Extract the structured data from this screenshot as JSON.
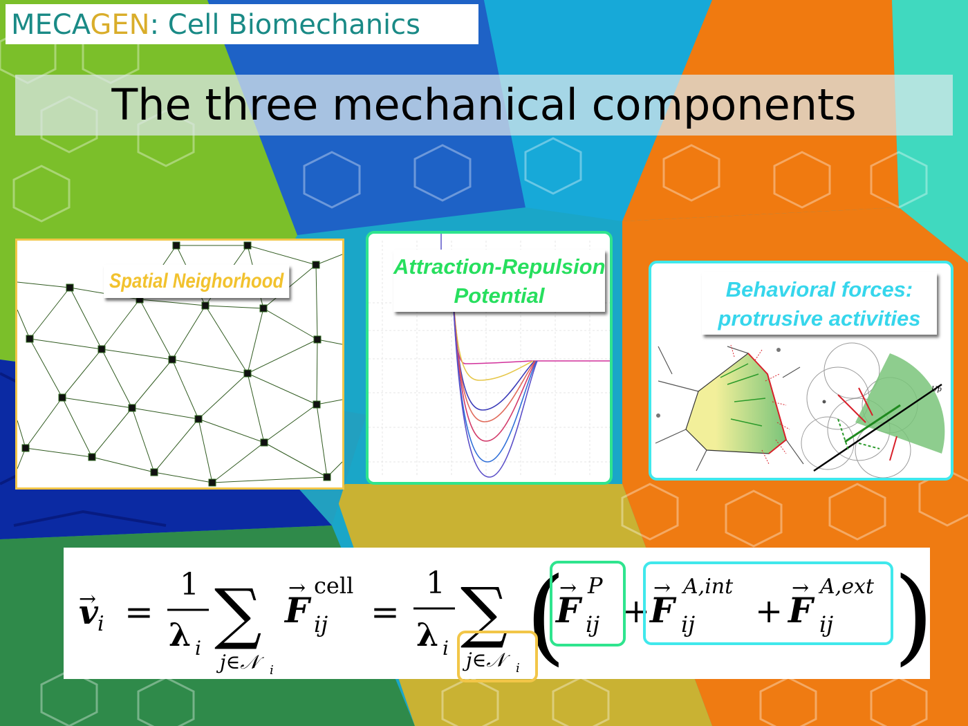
{
  "header": {
    "brand_part1": "MECA",
    "brand_part2": "GEN",
    "brand_part3": ": Cell Biomechanics"
  },
  "title": "The three mechanical components",
  "panels": {
    "neighborhood": {
      "label": "Spatial Neighorhood"
    },
    "potential": {
      "label_line1": "Attraction-Repulsion",
      "label_line2": "Potential"
    },
    "behavioral": {
      "label_line1": "Behavioral forces:",
      "label_line2": "protrusive activities",
      "diagram_label": "Up"
    }
  },
  "formula": {
    "lhs": "v",
    "sub_i": "i",
    "eq": "=",
    "one": "1",
    "lambda": "λ",
    "sum": "∑",
    "sum_index": "j∈𝒩",
    "F": "F",
    "sup_cell": "cell",
    "sub_ij": "ij",
    "sup_P": "P",
    "plus": "+",
    "sup_A_int": "A,int",
    "sup_A_ext": "A,ext",
    "lparen": "(",
    "rparen": ")"
  },
  "colors": {
    "neighborhood": "#f2c648",
    "potential": "#2fe48e",
    "behavioral": "#40e8ec",
    "brand_teal": "#1a8a86",
    "brand_gold": "#d9ad2a"
  }
}
